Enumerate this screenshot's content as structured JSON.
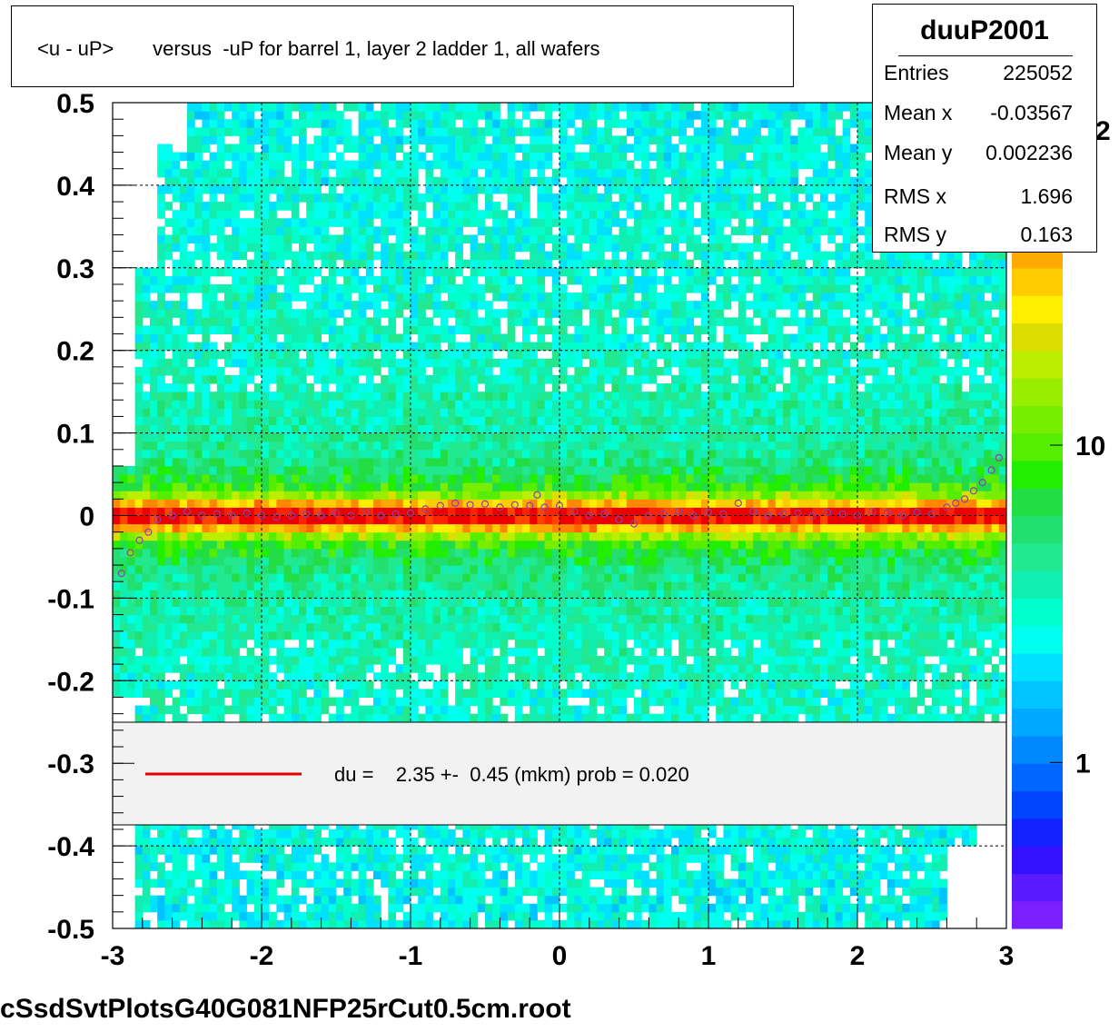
{
  "title": "<u - uP>       versus  -uP for barrel 1, layer 2 ladder 1, all wafers",
  "footer": "cSsdSvtPlotsG40G081NFP25rCut0.5cm.root",
  "stats": {
    "name": "duuP2001",
    "rows": [
      {
        "key": "Entries",
        "value": "225052"
      },
      {
        "key": "Mean x",
        "value": "-0.03567"
      },
      {
        "key": "Mean y",
        "value": "0.002236"
      },
      {
        "key": "RMS x",
        "value": "1.696"
      },
      {
        "key": "RMS y",
        "value": "0.163"
      }
    ]
  },
  "legend": {
    "text": "du =    2.35 +-  0.45 (mkm) prob = 0.020",
    "line_color": "#e00000"
  },
  "colorbar": {
    "labels": [
      {
        "text": "10",
        "value": 10
      },
      {
        "text": "1",
        "value": 1
      }
    ],
    "partial_label": "2",
    "colors": [
      "#7b1fff",
      "#5a1aff",
      "#3311ff",
      "#1122ff",
      "#0044ff",
      "#0066ff",
      "#0088ff",
      "#00a8ff",
      "#00c4ff",
      "#00e0ff",
      "#00ffee",
      "#00ffcc",
      "#11eeb0",
      "#22e890",
      "#22e070",
      "#22dd44",
      "#22ee00",
      "#55ee00",
      "#77ee00",
      "#99ee00",
      "#bbee00",
      "#dddd00",
      "#ffee00",
      "#ffcc00",
      "#ffaa00",
      "#ff8800",
      "#ff6600",
      "#ff4400",
      "#ff2200",
      "#ee0000"
    ]
  },
  "chart_data": {
    "type": "heatmap",
    "title": "<u - uP>       versus  -uP for barrel 1, layer 2 ladder 1, all wafers",
    "xlabel": "",
    "ylabel": "",
    "xlim": [
      -3,
      3
    ],
    "ylim": [
      -0.5,
      0.5
    ],
    "z_scale": "log",
    "x_ticks": [
      {
        "text": "-3",
        "value": -3
      },
      {
        "text": "-2",
        "value": -2
      },
      {
        "text": "-1",
        "value": -1
      },
      {
        "text": "0",
        "value": 0
      },
      {
        "text": "1",
        "value": 1
      },
      {
        "text": "2",
        "value": 2
      },
      {
        "text": "3",
        "value": 3
      }
    ],
    "y_ticks": [
      {
        "text": "0.5",
        "value": 0.5
      },
      {
        "text": "0.4",
        "value": 0.4
      },
      {
        "text": "0.3",
        "value": 0.3
      },
      {
        "text": "0.2",
        "value": 0.2
      },
      {
        "text": "0.1",
        "value": 0.1
      },
      {
        "text": "0",
        "value": 0
      },
      {
        "text": "-0.1",
        "value": -0.1
      },
      {
        "text": "-0.2",
        "value": -0.2
      },
      {
        "text": "-0.3",
        "value": -0.3
      },
      {
        "text": "-0.4",
        "value": -0.4
      },
      {
        "text": "-0.5",
        "value": -0.5
      }
    ],
    "grid": true,
    "profile_series": {
      "x": [
        -2.94,
        -2.88,
        -2.82,
        -2.76,
        -2.7,
        -2.6,
        -2.5,
        -2.4,
        -2.3,
        -2.2,
        -2.1,
        -2.0,
        -1.9,
        -1.8,
        -1.7,
        -1.6,
        -1.5,
        -1.4,
        -1.3,
        -1.2,
        -1.1,
        -1.0,
        -0.9,
        -0.8,
        -0.7,
        -0.6,
        -0.5,
        -0.4,
        -0.3,
        -0.2,
        -0.15,
        -0.1,
        0.0,
        0.1,
        0.2,
        0.3,
        0.4,
        0.5,
        0.6,
        0.7,
        0.8,
        0.9,
        1.0,
        1.1,
        1.2,
        1.3,
        1.4,
        1.5,
        1.6,
        1.7,
        1.8,
        1.9,
        2.0,
        2.1,
        2.2,
        2.3,
        2.4,
        2.5,
        2.6,
        2.66,
        2.72,
        2.78,
        2.84,
        2.9,
        2.95
      ],
      "y": [
        -0.07,
        -0.045,
        -0.03,
        -0.02,
        -0.005,
        0.0,
        0.005,
        0.0,
        0.002,
        0.0,
        0.003,
        0.0,
        -0.002,
        0.0,
        0.002,
        0.0,
        0.003,
        0.0,
        0.005,
        0.0,
        0.002,
        0.003,
        0.008,
        0.012,
        0.015,
        0.013,
        0.014,
        0.01,
        0.013,
        0.012,
        0.025,
        0.01,
        0.012,
        0.005,
        0.0,
        0.002,
        -0.005,
        -0.01,
        0.0,
        0.002,
        0.005,
        0.0,
        0.004,
        0.002,
        0.015,
        0.005,
        0.0,
        0.002,
        0.003,
        0.0,
        0.004,
        0.002,
        0.0,
        0.005,
        0.003,
        0.0,
        0.004,
        0.002,
        0.01,
        0.015,
        0.02,
        0.03,
        0.04,
        0.055,
        0.07
      ]
    }
  }
}
